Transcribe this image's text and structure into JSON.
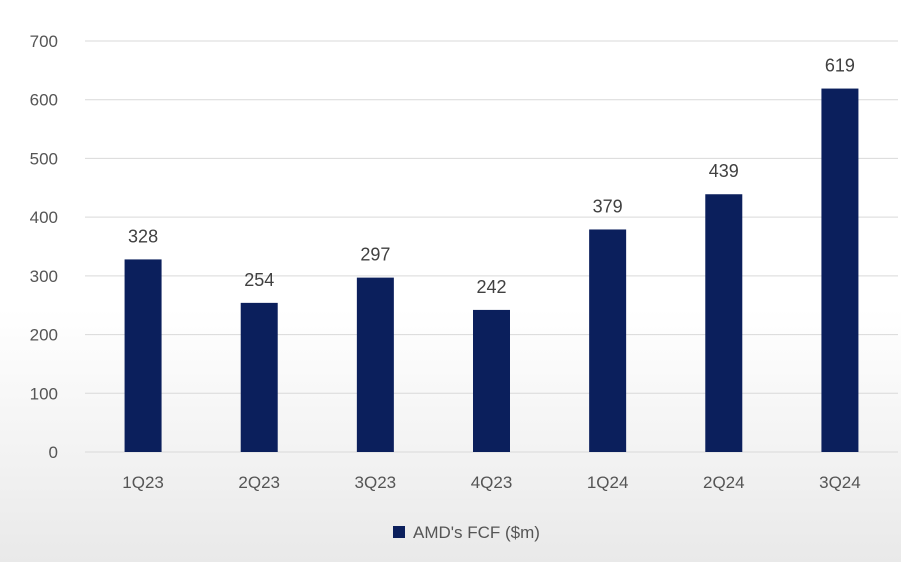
{
  "chart_data": {
    "type": "bar",
    "title": "",
    "xlabel": "",
    "ylabel": "",
    "categories": [
      "1Q23",
      "2Q23",
      "3Q23",
      "4Q23",
      "1Q24",
      "2Q24",
      "3Q24"
    ],
    "series": [
      {
        "name": "AMD's FCF ($m)",
        "values": [
          328,
          254,
          297,
          242,
          379,
          439,
          619
        ],
        "color": "#0b1f5c"
      }
    ],
    "data_labels": [
      "328",
      "254",
      "297",
      "242",
      "379",
      "439",
      "619"
    ],
    "ylim": [
      0,
      700
    ],
    "yticks": [
      0,
      100,
      200,
      300,
      400,
      500,
      600,
      700
    ],
    "ytick_labels": [
      "0",
      "100",
      "200",
      "300",
      "400",
      "500",
      "600",
      "700"
    ],
    "grid": true,
    "legend": {
      "position": "bottom",
      "label": "AMD's FCF ($m)"
    },
    "colors": {
      "bar": "#0b1f5c",
      "grid": "#d9d9d9",
      "text": "#555555"
    }
  }
}
